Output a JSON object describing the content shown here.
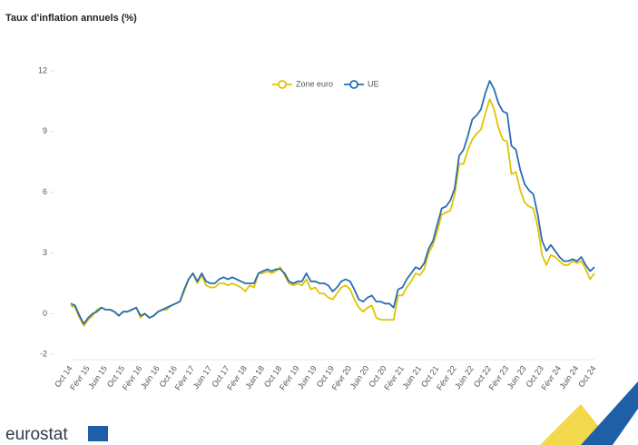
{
  "chart_data": {
    "type": "line",
    "title": "Taux d'inflation annuels (%)",
    "categories": [
      "Oct 14",
      null,
      null,
      null,
      "Févr 15",
      null,
      null,
      null,
      "Juin 15",
      null,
      null,
      null,
      "Oct 15",
      null,
      null,
      null,
      "Févr 16",
      null,
      null,
      null,
      "Juin 16",
      null,
      null,
      null,
      "Oct 16",
      null,
      null,
      null,
      "Févr 17",
      null,
      null,
      null,
      "Juin 17",
      null,
      null,
      null,
      "Oct 17",
      null,
      null,
      null,
      "Févr 18",
      null,
      null,
      null,
      "Juin 18",
      null,
      null,
      null,
      "Oct 18",
      null,
      null,
      null,
      "Févr 19",
      null,
      null,
      null,
      "Juin 19",
      null,
      null,
      null,
      "Oct 19",
      null,
      null,
      null,
      "Févr 20",
      null,
      null,
      null,
      "Juin 20",
      null,
      null,
      null,
      "Oct 20",
      null,
      null,
      null,
      "Févr 21",
      null,
      null,
      null,
      "Juin 21",
      null,
      null,
      null,
      "Oct 21",
      null,
      null,
      null,
      "Févr 22",
      null,
      null,
      null,
      "Juin 22",
      null,
      null,
      null,
      "Oct 22",
      null,
      null,
      null,
      "Févr 23",
      null,
      null,
      null,
      "Juin 23",
      null,
      null,
      null,
      "Oct 23",
      null,
      null,
      null,
      "Févr 24",
      null,
      null,
      null,
      "Juin 24",
      null,
      null,
      null,
      "Oct 24"
    ],
    "series": [
      {
        "name": "Zone euro",
        "color": "#e0c400",
        "values": [
          0.4,
          0.3,
          -0.2,
          -0.6,
          -0.3,
          -0.1,
          0.2,
          0.3,
          0.2,
          0.2,
          0.1,
          -0.1,
          0.1,
          0.1,
          0.2,
          0.3,
          -0.2,
          0.0,
          -0.2,
          -0.1,
          0.1,
          0.2,
          0.2,
          0.4,
          0.5,
          0.6,
          1.1,
          1.7,
          2.0,
          1.5,
          1.9,
          1.4,
          1.3,
          1.3,
          1.5,
          1.5,
          1.4,
          1.5,
          1.4,
          1.3,
          1.1,
          1.4,
          1.3,
          2.0,
          2.0,
          2.1,
          2.0,
          2.1,
          2.3,
          1.9,
          1.5,
          1.4,
          1.5,
          1.4,
          1.7,
          1.2,
          1.3,
          1.0,
          1.0,
          0.8,
          0.7,
          1.0,
          1.3,
          1.4,
          1.2,
          0.7,
          0.3,
          0.1,
          0.3,
          0.4,
          -0.2,
          -0.3,
          -0.3,
          -0.3,
          -0.3,
          0.9,
          0.9,
          1.3,
          1.6,
          2.0,
          1.9,
          2.2,
          3.0,
          3.4,
          4.1,
          4.9,
          5.0,
          5.1,
          5.9,
          7.4,
          7.4,
          8.1,
          8.6,
          8.9,
          9.1,
          9.9,
          10.6,
          10.1,
          9.2,
          8.6,
          8.5,
          6.9,
          7.0,
          6.1,
          5.5,
          5.3,
          5.2,
          4.3,
          2.9,
          2.4,
          2.9,
          2.8,
          2.6,
          2.4,
          2.4,
          2.6,
          2.5,
          2.6,
          2.2,
          1.7,
          2.0
        ]
      },
      {
        "name": "UE",
        "color": "#2a6db0",
        "values": [
          0.5,
          0.4,
          -0.1,
          -0.5,
          -0.2,
          0.0,
          0.1,
          0.3,
          0.2,
          0.2,
          0.1,
          -0.1,
          0.1,
          0.1,
          0.2,
          0.3,
          -0.1,
          0.0,
          -0.2,
          -0.1,
          0.1,
          0.2,
          0.3,
          0.4,
          0.5,
          0.6,
          1.2,
          1.7,
          2.0,
          1.6,
          2.0,
          1.6,
          1.5,
          1.5,
          1.7,
          1.8,
          1.7,
          1.8,
          1.7,
          1.6,
          1.5,
          1.5,
          1.5,
          2.0,
          2.1,
          2.2,
          2.1,
          2.2,
          2.2,
          2.0,
          1.6,
          1.5,
          1.6,
          1.6,
          2.0,
          1.6,
          1.6,
          1.5,
          1.5,
          1.4,
          1.1,
          1.3,
          1.6,
          1.7,
          1.6,
          1.2,
          0.7,
          0.6,
          0.8,
          0.9,
          0.6,
          0.6,
          0.5,
          0.5,
          0.3,
          1.2,
          1.3,
          1.7,
          2.0,
          2.3,
          2.2,
          2.5,
          3.2,
          3.6,
          4.4,
          5.2,
          5.3,
          5.6,
          6.2,
          7.8,
          8.1,
          8.8,
          9.6,
          9.8,
          10.1,
          10.9,
          11.5,
          11.1,
          10.4,
          10.0,
          9.9,
          8.3,
          8.1,
          7.1,
          6.4,
          6.1,
          5.9,
          4.9,
          3.6,
          3.1,
          3.4,
          3.1,
          2.8,
          2.6,
          2.6,
          2.7,
          2.6,
          2.8,
          2.4,
          2.1,
          2.3
        ]
      }
    ],
    "ylim": [
      -2,
      12
    ],
    "yticks": [
      -2,
      0,
      3,
      6,
      9,
      12
    ],
    "legend": "top"
  },
  "logo": "eurostat"
}
